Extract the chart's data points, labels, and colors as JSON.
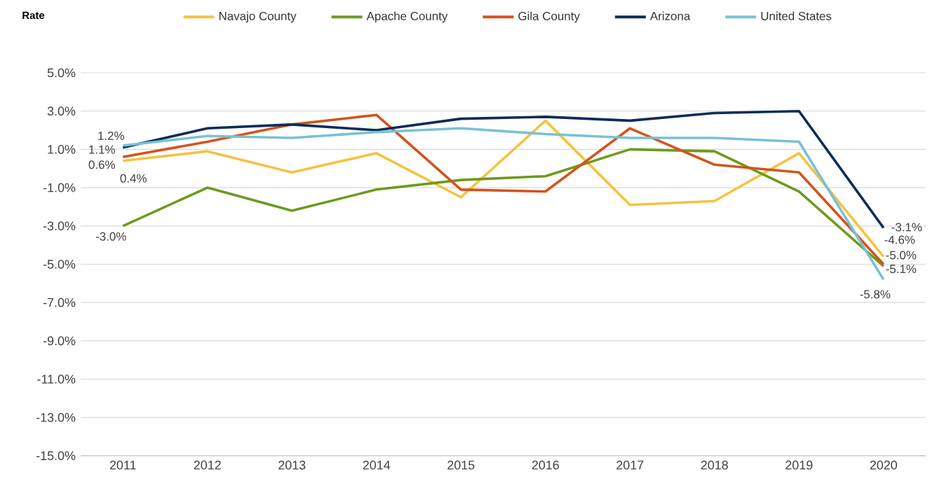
{
  "chart_data": {
    "type": "line",
    "ylabel": "Rate",
    "categories": [
      "2011",
      "2012",
      "2013",
      "2014",
      "2015",
      "2016",
      "2017",
      "2018",
      "2019",
      "2020"
    ],
    "series": [
      {
        "name": "Navajo County",
        "color": "#f5c242",
        "values": [
          0.4,
          0.9,
          -0.2,
          0.8,
          -1.5,
          2.5,
          -1.9,
          -1.7,
          0.8,
          -4.6
        ],
        "value_labels": [
          "0.4%",
          null,
          null,
          null,
          null,
          null,
          null,
          null,
          null,
          "-4.6%"
        ]
      },
      {
        "name": "Apache County",
        "color": "#6e9a1e",
        "values": [
          -3.0,
          -1.0,
          -2.2,
          -1.1,
          -0.6,
          -0.4,
          1.0,
          0.9,
          -1.2,
          -5.1
        ],
        "value_labels": [
          "-3.0%",
          null,
          null,
          null,
          null,
          null,
          null,
          null,
          null,
          "-5.1%"
        ]
      },
      {
        "name": "Gila County",
        "color": "#d4531b",
        "values": [
          0.6,
          1.4,
          2.3,
          2.8,
          -1.1,
          -1.2,
          2.1,
          0.2,
          -0.2,
          -5.0
        ],
        "value_labels": [
          "0.6%",
          null,
          null,
          null,
          null,
          null,
          null,
          null,
          null,
          "-5.0%"
        ]
      },
      {
        "name": "Arizona",
        "color": "#0b2d57",
        "values": [
          1.1,
          2.1,
          2.3,
          2.0,
          2.6,
          2.7,
          2.5,
          2.9,
          3.0,
          -3.1
        ],
        "value_labels": [
          "1.1%",
          null,
          null,
          null,
          null,
          null,
          null,
          null,
          null,
          "-3.1%"
        ]
      },
      {
        "name": "United States",
        "color": "#78c1d6",
        "values": [
          1.2,
          1.7,
          1.6,
          1.9,
          2.1,
          1.8,
          1.6,
          1.6,
          1.4,
          -5.8
        ],
        "value_labels": [
          "1.2%",
          null,
          null,
          null,
          null,
          null,
          null,
          null,
          null,
          "-5.8%"
        ]
      }
    ],
    "ylim": [
      -15,
      5
    ],
    "yticks": [
      {
        "value": -15,
        "label": "-15.0%"
      },
      {
        "value": -13,
        "label": "-13.0%"
      },
      {
        "value": -11,
        "label": "-11.0%"
      },
      {
        "value": -9,
        "label": "-9.0%"
      },
      {
        "value": -7,
        "label": "-7.0%"
      },
      {
        "value": -5,
        "label": "-5.0%"
      },
      {
        "value": -3,
        "label": "-3.0%"
      },
      {
        "value": -1,
        "label": "-1.0%"
      },
      {
        "value": 1,
        "label": "1.0%"
      },
      {
        "value": 3,
        "label": "3.0%"
      },
      {
        "value": 5,
        "label": "5.0%"
      }
    ],
    "grid": "y",
    "legend": "top"
  }
}
